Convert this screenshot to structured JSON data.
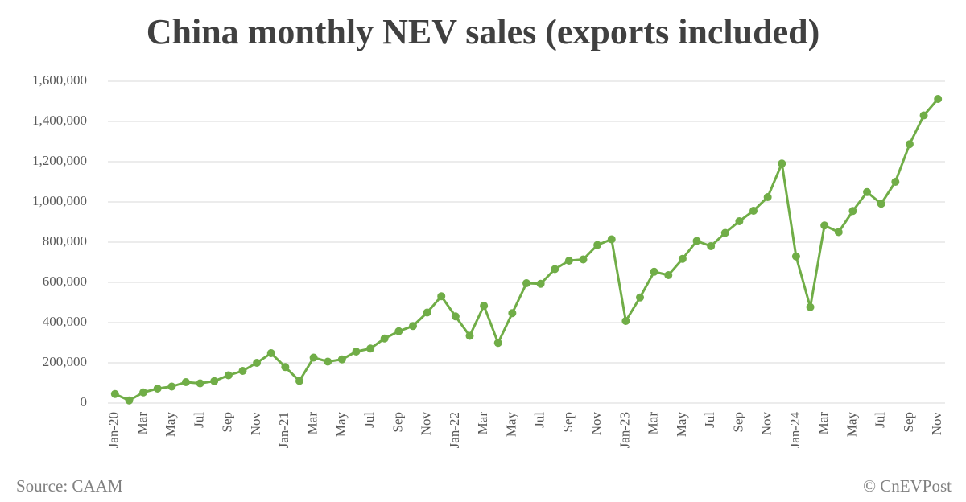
{
  "chart_data": {
    "type": "line",
    "title": "China monthly NEV sales (exports included)",
    "categories": [
      "Jan-20",
      null,
      "Mar",
      null,
      "May",
      null,
      "Jul",
      null,
      "Sep",
      null,
      "Nov",
      null,
      "Jan-21",
      null,
      "Mar",
      null,
      "May",
      null,
      "Jul",
      null,
      "Sep",
      null,
      "Nov",
      null,
      "Jan-22",
      null,
      "Mar",
      null,
      "May",
      null,
      "Jul",
      null,
      "Sep",
      null,
      "Nov",
      null,
      "Jan-23",
      null,
      "Mar",
      null,
      "May",
      null,
      "Jul",
      null,
      "Sep",
      null,
      "Nov",
      null,
      "Jan-24",
      null,
      "Mar",
      null,
      "May",
      null,
      "Jul",
      null,
      "Sep",
      null,
      "Nov"
    ],
    "series": [
      {
        "name": "NEV sales",
        "color": "#70ad47",
        "values": [
          45000,
          13000,
          53000,
          72000,
          82000,
          104000,
          98000,
          109000,
          138000,
          160000,
          200000,
          248000,
          179000,
          110000,
          226000,
          206000,
          217000,
          256000,
          271000,
          321000,
          357000,
          383000,
          450000,
          531000,
          431000,
          334000,
          484000,
          299000,
          447000,
          596000,
          593000,
          666000,
          708000,
          714000,
          786000,
          814000,
          408000,
          525000,
          653000,
          636000,
          717000,
          806000,
          780000,
          846000,
          904000,
          956000,
          1024000,
          1191000,
          729000,
          477000,
          883000,
          850000,
          955000,
          1049000,
          991000,
          1100000,
          1287000,
          1430000,
          1512000
        ]
      }
    ],
    "ylim": [
      0,
      1600000
    ],
    "yticks": [
      0,
      {
        "value": 200000,
        "label": "200,000"
      },
      {
        "value": 400000,
        "label": "400,000"
      },
      {
        "value": 600000,
        "label": "600,000"
      },
      {
        "value": 800000,
        "label": "800,000"
      },
      {
        "value": 1000000,
        "label": "1,000,000"
      },
      {
        "value": 1200000,
        "label": "1,200,000"
      },
      {
        "value": 1400000,
        "label": "1,400,000"
      },
      {
        "value": 1600000,
        "label": "1,600,000"
      }
    ],
    "grid": true,
    "source": "Source: CAAM",
    "credit": "© CnEVPost"
  }
}
